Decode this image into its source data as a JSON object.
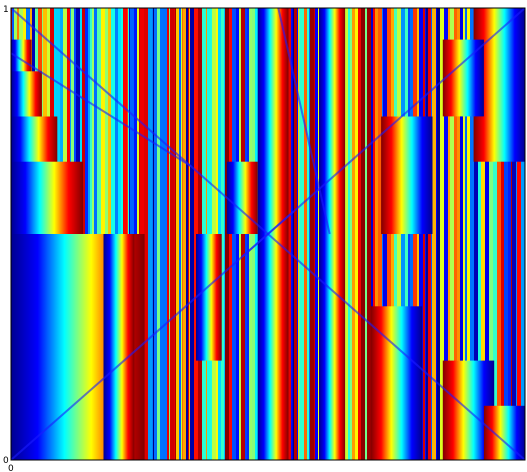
{
  "chart_data": {
    "type": "heatmap",
    "title": "",
    "xlabel": "",
    "ylabel": "",
    "colormap": "jet",
    "colormap_stops": [
      "#00008f",
      "#0000ff",
      "#00ffff",
      "#ffff00",
      "#ff0000",
      "#800000"
    ],
    "frame_color": "#000000",
    "x_ticks": [
      "0"
    ],
    "y_ticks": [
      "1",
      "0"
    ],
    "xlim": [
      0,
      1
    ],
    "ylim": [
      0,
      1
    ],
    "grid": false,
    "legend": "none"
  }
}
